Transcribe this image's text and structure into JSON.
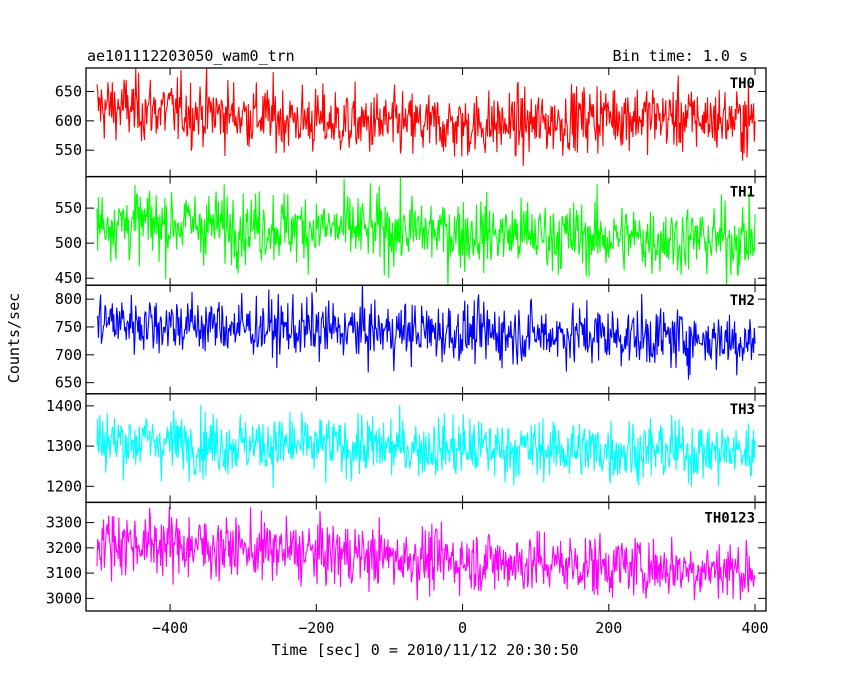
{
  "header": {
    "title": "ae101112203050_wam0_trn",
    "bin_time": "Bin time: 1.0 s"
  },
  "chart_data": {
    "type": "line",
    "title": "ae101112203050_wam0_trn",
    "xlabel": "Time [sec] 0 = 2010/11/12 20:30:50",
    "ylabel": "Counts/sec",
    "xlim": [
      -515,
      415
    ],
    "x_ticks": [
      -400,
      -200,
      0,
      200,
      400
    ],
    "x_tick_labels": [
      "−400",
      "−200",
      "0",
      "200",
      "400"
    ],
    "x_range": [
      -500,
      400
    ],
    "series": [
      {
        "name": "TH0",
        "color": "#ff0000",
        "ylim": [
          505,
          690
        ],
        "ticks": [
          550,
          600,
          650
        ],
        "tick_labels": [
          "550",
          "600",
          "650"
        ],
        "trend": [
          [
            -500,
            625
          ],
          [
            -300,
            610
          ],
          [
            -150,
            595
          ],
          [
            0,
            592
          ],
          [
            100,
            595
          ],
          [
            200,
            610
          ],
          [
            400,
            600
          ]
        ],
        "noise": 28
      },
      {
        "name": "TH1",
        "color": "#00ff00",
        "ylim": [
          440,
          595
        ],
        "ticks": [
          450,
          500,
          550
        ],
        "tick_labels": [
          "450",
          "500",
          "550"
        ],
        "trend": [
          [
            -500,
            530
          ],
          [
            -200,
            522
          ],
          [
            0,
            515
          ],
          [
            200,
            508
          ],
          [
            400,
            505
          ]
        ],
        "noise": 25
      },
      {
        "name": "TH2",
        "color": "#0000ff",
        "ylim": [
          630,
          825
        ],
        "ticks": [
          650,
          700,
          750,
          800
        ],
        "tick_labels": [
          "650",
          "700",
          "750",
          "800"
        ],
        "trend": [
          [
            -500,
            760
          ],
          [
            -200,
            745
          ],
          [
            0,
            740
          ],
          [
            200,
            735
          ],
          [
            400,
            725
          ]
        ],
        "noise": 27
      },
      {
        "name": "TH3",
        "color": "#00ffff",
        "ylim": [
          1160,
          1430
        ],
        "ticks": [
          1200,
          1300,
          1400
        ],
        "tick_labels": [
          "1200",
          "1300",
          "1400"
        ],
        "trend": [
          [
            -500,
            1315
          ],
          [
            -200,
            1300
          ],
          [
            0,
            1295
          ],
          [
            200,
            1290
          ],
          [
            400,
            1285
          ]
        ],
        "noise": 38
      },
      {
        "name": "TH0123",
        "color": "#ff00ff",
        "ylim": [
          2950,
          3380
        ],
        "ticks": [
          3000,
          3100,
          3200,
          3300
        ],
        "tick_labels": [
          "3000",
          "3100",
          "3200",
          "3300"
        ],
        "trend": [
          [
            -500,
            3230
          ],
          [
            -200,
            3180
          ],
          [
            0,
            3150
          ],
          [
            200,
            3130
          ],
          [
            400,
            3110
          ]
        ],
        "noise": 62
      }
    ]
  }
}
